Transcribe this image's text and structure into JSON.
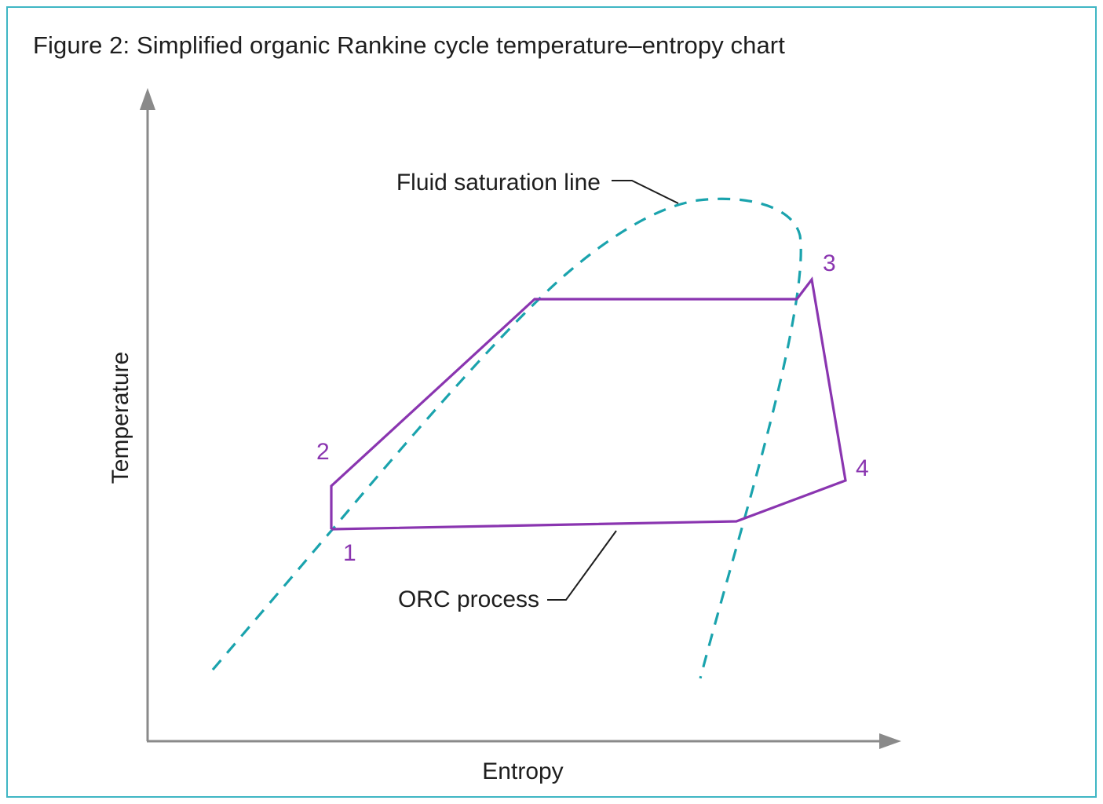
{
  "title": "Figure 2: Simplified organic Rankine cycle temperature–entropy chart",
  "axes": {
    "x_label": "Entropy",
    "y_label": "Temperature"
  },
  "annotations": {
    "saturation_line": "Fluid saturation line",
    "orc_process": "ORC process"
  },
  "state_points": [
    "1",
    "2",
    "3",
    "4"
  ],
  "colors": {
    "frame": "#3fb6c4",
    "saturation_line": "#1aa3ad",
    "orc_process": "#8a35b0",
    "axis": "#8a8a8a",
    "text": "#1e1e1e"
  }
}
